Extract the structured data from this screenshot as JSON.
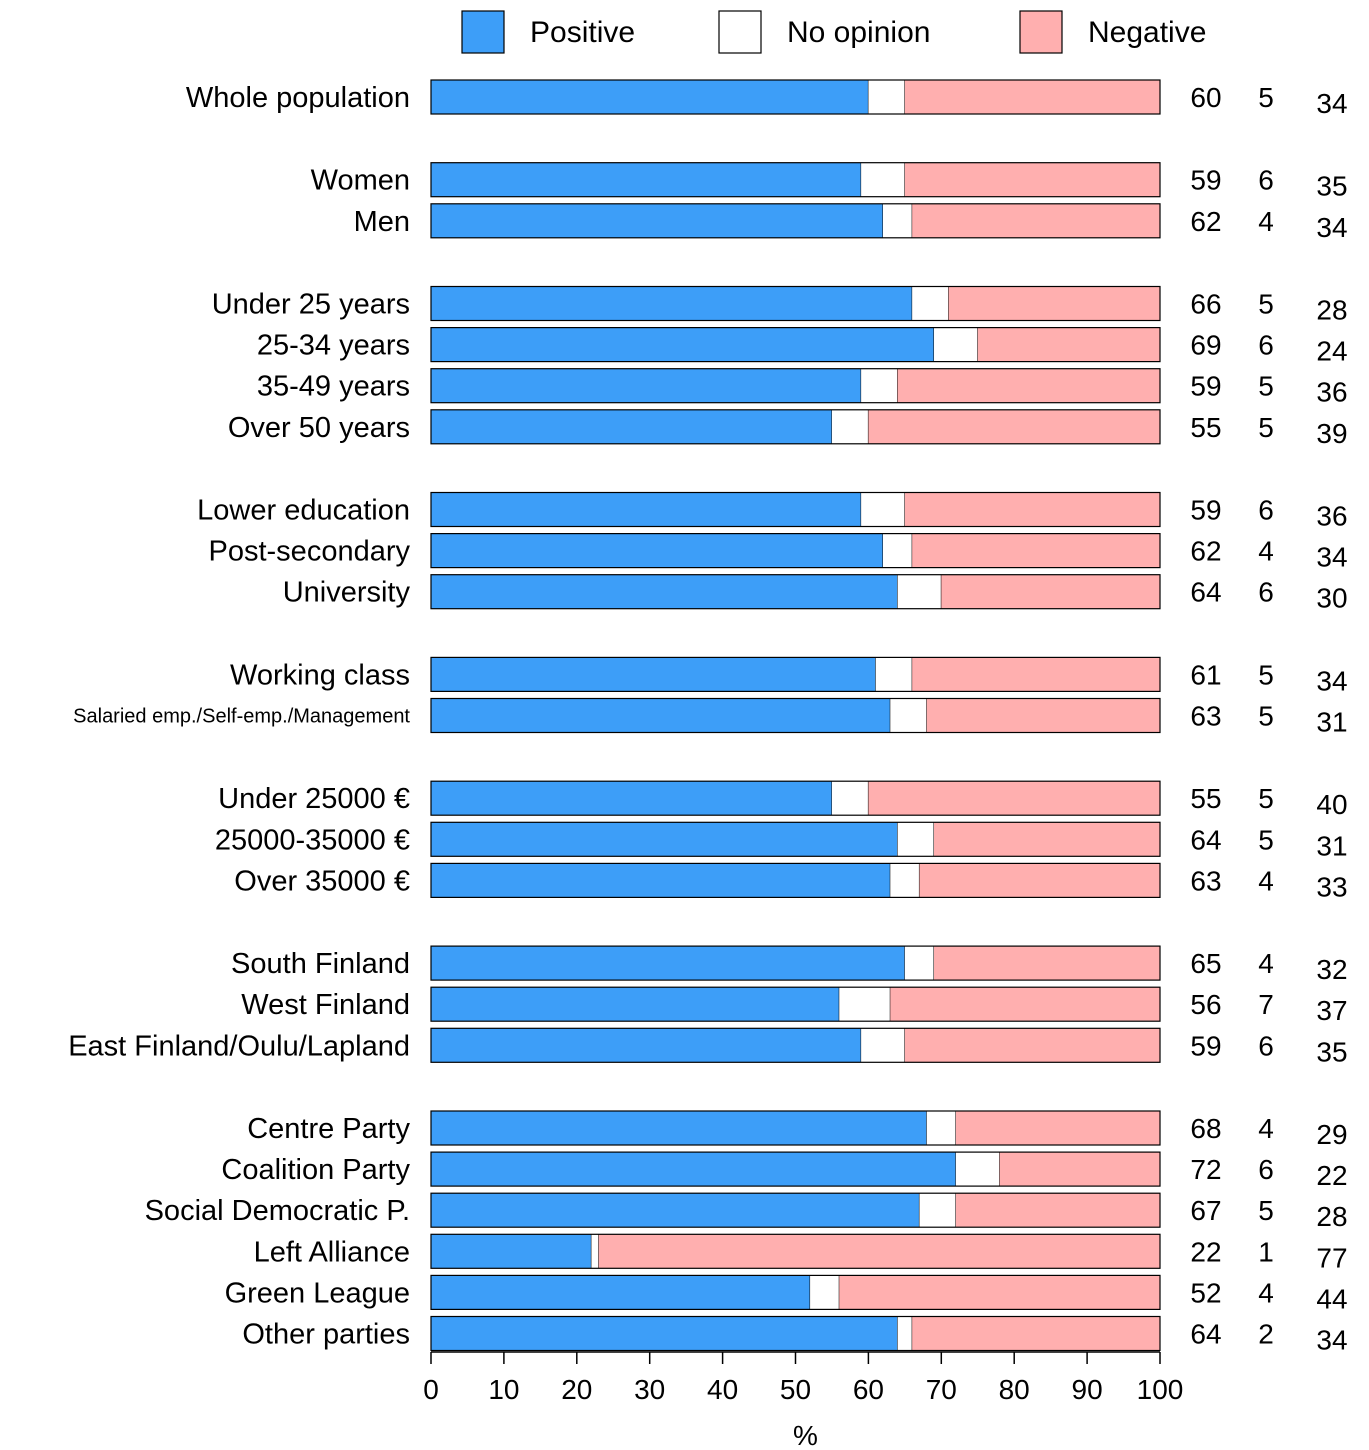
{
  "chart_data": {
    "type": "bar",
    "stacked": true,
    "orientation": "horizontal",
    "categories": [
      "Whole population",
      "Women",
      "Men",
      "Under 25 years",
      "25-34 years",
      "35-49 years",
      "Over 50 years",
      "Lower education",
      "Post-secondary",
      "University",
      "Working class",
      "Salaried emp./Self-emp./Management",
      "Under 25000 €",
      "25000-35000 €",
      "Over 35000 €",
      "South Finland",
      "West Finland",
      "East Finland/Oulu/Lapland",
      "Centre Party",
      "Coalition Party",
      "Social Democratic P.",
      "Left Alliance",
      "Green League",
      "Other parties"
    ],
    "series": [
      {
        "name": "Positive",
        "color": "#3d9ef8",
        "values": [
          60,
          59,
          62,
          66,
          69,
          59,
          55,
          59,
          62,
          64,
          61,
          63,
          55,
          64,
          63,
          65,
          56,
          59,
          68,
          72,
          67,
          22,
          52,
          64
        ]
      },
      {
        "name": "No opinion",
        "color": "#ffffff",
        "values": [
          5,
          6,
          4,
          5,
          6,
          5,
          5,
          6,
          4,
          6,
          5,
          5,
          5,
          5,
          4,
          4,
          7,
          6,
          4,
          6,
          5,
          1,
          4,
          2
        ]
      },
      {
        "name": "Negative",
        "color": "#ffafaf",
        "values": [
          34,
          35,
          34,
          28,
          24,
          36,
          39,
          36,
          34,
          30,
          34,
          31,
          40,
          31,
          33,
          32,
          37,
          35,
          29,
          22,
          28,
          77,
          44,
          34
        ]
      }
    ],
    "xlabel": "%",
    "ylabel": "",
    "xlim": [
      0,
      100
    ],
    "xticks": [
      "0",
      "10",
      "20",
      "30",
      "40",
      "50",
      "60",
      "70",
      "80",
      "90",
      "100"
    ],
    "legend_position": "top",
    "grid": false
  }
}
